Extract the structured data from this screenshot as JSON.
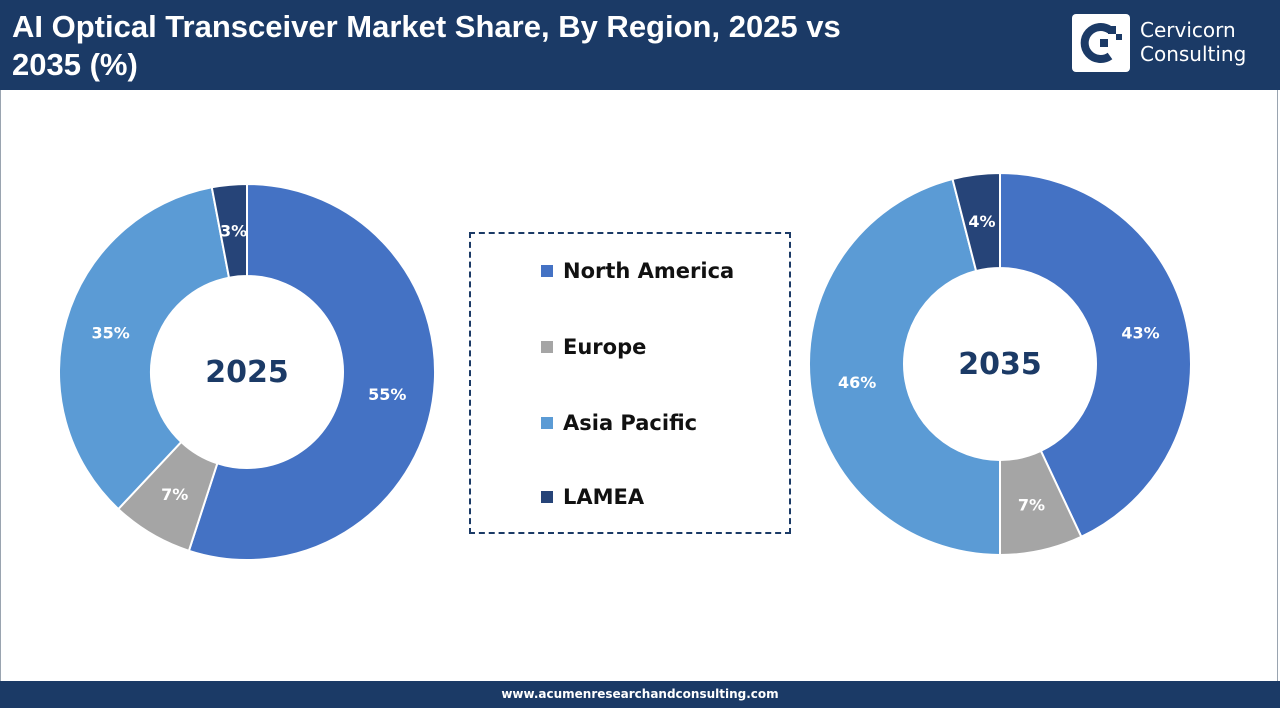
{
  "header": {
    "title": "AI Optical Transceiver Market Share, By Region, 2025 vs 2035 (%)",
    "brand_line1": "Cervicorn",
    "brand_line2": "Consulting"
  },
  "footer": {
    "url": "www.acumenresearchandconsulting.com"
  },
  "colors": {
    "header_bg": "#1b3a66",
    "north_america": "#4472c4",
    "europe": "#a5a5a5",
    "asia_pacific": "#5b9bd5",
    "lamea": "#264478"
  },
  "chart_data": [
    {
      "type": "pie",
      "center_label": "2025",
      "categories": [
        "North America",
        "Europe",
        "Asia Pacific",
        "LAMEA"
      ],
      "values": [
        55,
        7,
        35,
        3
      ],
      "value_labels": [
        "55%",
        "7%",
        "35%",
        "3%"
      ],
      "colors": [
        "#4472c4",
        "#a5a5a5",
        "#5b9bd5",
        "#264478"
      ]
    },
    {
      "type": "pie",
      "center_label": "2035",
      "categories": [
        "North America",
        "Europe",
        "Asia Pacific",
        "LAMEA"
      ],
      "values": [
        43,
        7,
        46,
        4
      ],
      "value_labels": [
        "43%",
        "7%",
        "46%",
        "4%"
      ],
      "colors": [
        "#4472c4",
        "#a5a5a5",
        "#5b9bd5",
        "#264478"
      ]
    }
  ],
  "legend": {
    "items": [
      {
        "label": "North America",
        "color": "#4472c4"
      },
      {
        "label": "Europe",
        "color": "#a5a5a5"
      },
      {
        "label": "Asia Pacific",
        "color": "#5b9bd5"
      },
      {
        "label": "LAMEA",
        "color": "#264478"
      }
    ]
  }
}
